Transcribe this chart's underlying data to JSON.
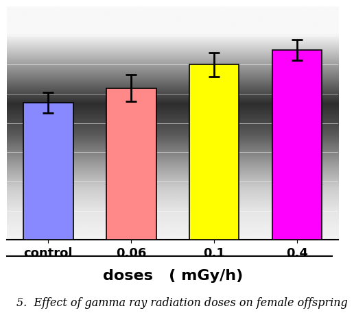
{
  "categories": [
    "control",
    "0.06",
    "0.1",
    "0.4"
  ],
  "values": [
    47,
    52,
    60,
    65
  ],
  "errors": [
    3.5,
    4.5,
    4.0,
    3.5
  ],
  "bar_colors": [
    "#8888FF",
    "#FF8888",
    "#FFFF00",
    "#FF00FF"
  ],
  "bar_edgecolors": [
    "#000000",
    "#000000",
    "#000000",
    "#000000"
  ],
  "xlabel": "doses   ( mGy/h)",
  "ylim": [
    0,
    80
  ],
  "bar_width": 0.6,
  "caption": "5.  Effect of gamma ray radiation doses on female offspring",
  "caption_fontsize": 11.5,
  "xlabel_fontsize": 16,
  "xtick_fontsize": 13,
  "gradient_stops": [
    0.97,
    0.97,
    0.55,
    0.18,
    0.35,
    0.62,
    0.8,
    0.9,
    0.95
  ],
  "gradient_fracs": [
    0.0,
    0.12,
    0.28,
    0.42,
    0.55,
    0.68,
    0.78,
    0.88,
    1.0
  ],
  "hline_color": "#CCCCCC",
  "hline_positions": [
    10,
    20,
    30,
    40,
    50,
    60,
    70,
    80
  ]
}
